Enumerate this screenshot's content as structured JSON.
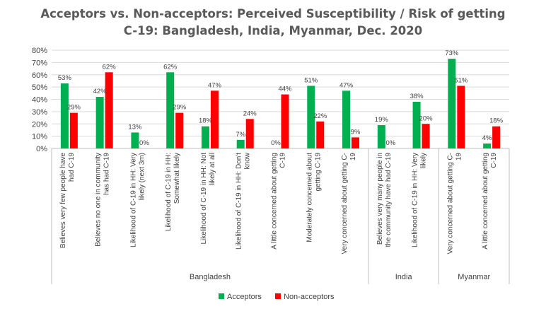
{
  "chart_data": {
    "type": "bar",
    "title": [
      "Acceptors vs. Non-acceptors:  Perceived Susceptibility / Risk of getting",
      "C-19: Bangladesh, India, Myanmar, Dec. 2020"
    ],
    "ylim": [
      0,
      80
    ],
    "yticks": [
      "0%",
      "10%",
      "20%",
      "30%",
      "40%",
      "50%",
      "60%",
      "70%",
      "80%"
    ],
    "grid": true,
    "legend_position": "bottom",
    "categories": [
      "Believes very few people have had C-19",
      "Believes no one in community has had C-19",
      "Likelihood of C-19 in HH: Very likely (next 3m)",
      "Likelihood of C-19 in HH: Somewhat likely",
      "Likelihood of C-19 in HH: Not likely at all",
      "Likelihood of C-19 in HH:  Don't know",
      "A little concerned about getting C-19",
      "Moderately concerned about getting C-19",
      "Very concerned about getting C-19",
      "Believes very many people in the community have had C-19",
      "Likelihood of C-19 in HH:  Very likely",
      "Very concerned about getting C-19",
      "A little concerned about getting C-19"
    ],
    "category_lines": [
      [
        "Believes very few people have",
        "had C-19"
      ],
      [
        "Believes no one in community",
        "has had C-19"
      ],
      [
        "Likelihood of C-19 in HH: Very",
        "likely (next 3m)"
      ],
      [
        "Likelihood of C-19 in HH:",
        "Somewhat likely"
      ],
      [
        "Likelihood of C-19 in HH: Not",
        "likely at all"
      ],
      [
        "Likelihood of C-19 in HH:  Don't",
        "know"
      ],
      [
        "A little concerned about getting",
        "C-19"
      ],
      [
        "Moderately concerned about",
        "getting C-19"
      ],
      [
        "Very concerned about getting C-",
        "19"
      ],
      [
        "Believes very many people in",
        "the community have had C-19"
      ],
      [
        "Likelihood of C-19 in HH:  Very",
        "likely"
      ],
      [
        "Very concerned about getting C-",
        "19"
      ],
      [
        "A little concerned about getting",
        "C-19"
      ]
    ],
    "groups": [
      {
        "name": "Bangladesh",
        "start": 0,
        "end": 8
      },
      {
        "name": "India",
        "start": 9,
        "end": 10
      },
      {
        "name": "Myanmar",
        "start": 11,
        "end": 12
      }
    ],
    "series": [
      {
        "name": "Acceptors",
        "color": "#00B050",
        "values": [
          53,
          42,
          13,
          62,
          18,
          7,
          0,
          51,
          47,
          19,
          38,
          73,
          4
        ],
        "labels": [
          "53%",
          "42%",
          "13%",
          "62%",
          "18%",
          "7%",
          "0%",
          "51%",
          "47%",
          "19%",
          "38%",
          "73%",
          "4%"
        ]
      },
      {
        "name": "Non-acceptors",
        "color": "#FF0000",
        "values": [
          29,
          62,
          0,
          29,
          47,
          24,
          44,
          22,
          9,
          0,
          20,
          51,
          18
        ],
        "labels": [
          "29%",
          "62%",
          "0%",
          "29%",
          "47%",
          "24%",
          "44%",
          "22%",
          "9%",
          "0%",
          "20%",
          "51%",
          "18%"
        ]
      }
    ]
  }
}
